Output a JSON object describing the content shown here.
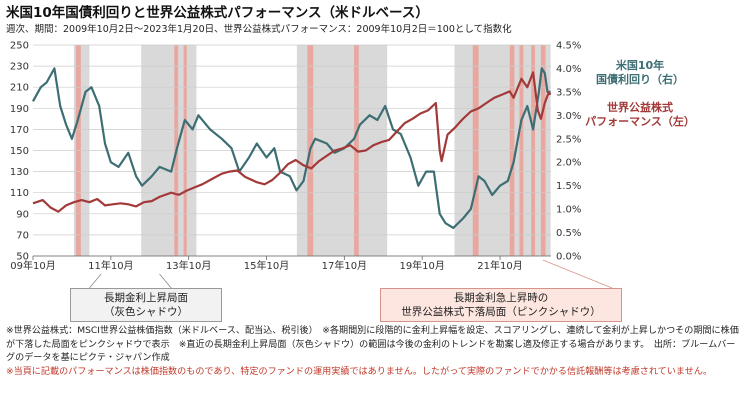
{
  "header": {
    "title": "米国10年国債利回りと世界公益株式パフォーマンス（米ドルベース）",
    "subtitle": "週次、期間：2009年10月2日～2023年1月20日、世界公益株式パフォーマンス：2009年10月2日＝100として指数化"
  },
  "chart_data": {
    "type": "line",
    "x_range": [
      "2009-10-02",
      "2023-01-20"
    ],
    "x_ticks": [
      "09年10月",
      "11年10月",
      "13年10月",
      "15年10月",
      "17年10月",
      "19年10月",
      "21年10月"
    ],
    "left_axis": {
      "min": 50,
      "max": 250,
      "step": 20,
      "ticks": [
        "50",
        "70",
        "90",
        "110",
        "130",
        "150",
        "170",
        "190",
        "210",
        "230",
        "250"
      ]
    },
    "right_axis": {
      "min": 0,
      "max": 4.5,
      "step": 0.5,
      "ticks": [
        "0.0%",
        "0.5%",
        "1.0%",
        "1.5%",
        "2.0%",
        "2.5%",
        "3.0%",
        "3.5%",
        "4.0%",
        "4.5%"
      ]
    },
    "grid": true,
    "gray_periods": [
      [
        2010.8,
        2011.2
      ],
      [
        2012.53,
        2013.95
      ],
      [
        2016.53,
        2018.85
      ],
      [
        2020.58,
        2023.05
      ]
    ],
    "pink_periods": [
      [
        2010.85,
        2010.98
      ],
      [
        2013.38,
        2013.48
      ],
      [
        2013.62,
        2013.7
      ],
      [
        2016.8,
        2016.95
      ],
      [
        2018.0,
        2018.12
      ],
      [
        2021.05,
        2021.2
      ],
      [
        2022.0,
        2022.12
      ],
      [
        2022.25,
        2022.35
      ],
      [
        2022.55,
        2022.65
      ],
      [
        2022.8,
        2022.92
      ]
    ],
    "series": [
      {
        "name": "米国10年国債利回り（右）",
        "axis": "right",
        "color": "#3d6e74",
        "label": "米国10年\n国債利回り（右）",
        "points": [
          [
            2009.75,
            3.3
          ],
          [
            2009.95,
            3.6
          ],
          [
            2010.1,
            3.7
          ],
          [
            2010.3,
            4.0
          ],
          [
            2010.45,
            3.2
          ],
          [
            2010.6,
            2.8
          ],
          [
            2010.75,
            2.5
          ],
          [
            2010.9,
            2.9
          ],
          [
            2011.1,
            3.5
          ],
          [
            2011.25,
            3.6
          ],
          [
            2011.45,
            3.2
          ],
          [
            2011.6,
            2.4
          ],
          [
            2011.75,
            2.0
          ],
          [
            2011.95,
            1.9
          ],
          [
            2012.2,
            2.2
          ],
          [
            2012.4,
            1.7
          ],
          [
            2012.55,
            1.5
          ],
          [
            2012.8,
            1.7
          ],
          [
            2013.0,
            1.9
          ],
          [
            2013.3,
            1.8
          ],
          [
            2013.45,
            2.3
          ],
          [
            2013.65,
            2.9
          ],
          [
            2013.85,
            2.7
          ],
          [
            2014.0,
            3.0
          ],
          [
            2014.3,
            2.7
          ],
          [
            2014.6,
            2.5
          ],
          [
            2014.85,
            2.3
          ],
          [
            2015.05,
            1.8
          ],
          [
            2015.3,
            2.1
          ],
          [
            2015.5,
            2.4
          ],
          [
            2015.75,
            2.1
          ],
          [
            2015.95,
            2.3
          ],
          [
            2016.1,
            1.8
          ],
          [
            2016.35,
            1.7
          ],
          [
            2016.52,
            1.4
          ],
          [
            2016.7,
            1.6
          ],
          [
            2016.88,
            2.3
          ],
          [
            2017.0,
            2.5
          ],
          [
            2017.3,
            2.4
          ],
          [
            2017.5,
            2.2
          ],
          [
            2017.75,
            2.3
          ],
          [
            2018.0,
            2.5
          ],
          [
            2018.15,
            2.8
          ],
          [
            2018.4,
            3.0
          ],
          [
            2018.6,
            2.9
          ],
          [
            2018.8,
            3.2
          ],
          [
            2019.0,
            2.7
          ],
          [
            2019.2,
            2.6
          ],
          [
            2019.45,
            2.1
          ],
          [
            2019.65,
            1.5
          ],
          [
            2019.85,
            1.8
          ],
          [
            2020.05,
            1.8
          ],
          [
            2020.2,
            0.9
          ],
          [
            2020.35,
            0.7
          ],
          [
            2020.55,
            0.6
          ],
          [
            2020.8,
            0.8
          ],
          [
            2021.0,
            1.0
          ],
          [
            2021.2,
            1.7
          ],
          [
            2021.35,
            1.6
          ],
          [
            2021.55,
            1.3
          ],
          [
            2021.75,
            1.5
          ],
          [
            2021.95,
            1.6
          ],
          [
            2022.1,
            2.0
          ],
          [
            2022.3,
            2.9
          ],
          [
            2022.45,
            3.2
          ],
          [
            2022.6,
            2.7
          ],
          [
            2022.75,
            3.5
          ],
          [
            2022.82,
            4.0
          ],
          [
            2022.9,
            3.9
          ],
          [
            2022.97,
            3.5
          ],
          [
            2023.05,
            3.5
          ]
        ]
      },
      {
        "name": "世界公益株式パフォーマンス（左）",
        "axis": "left",
        "color": "#a33a3a",
        "label": "世界公益株式\nパフォーマンス（左）",
        "points": [
          [
            2009.75,
            100
          ],
          [
            2010.0,
            103
          ],
          [
            2010.2,
            96
          ],
          [
            2010.4,
            92
          ],
          [
            2010.6,
            98
          ],
          [
            2010.8,
            101
          ],
          [
            2011.0,
            103
          ],
          [
            2011.2,
            101
          ],
          [
            2011.4,
            104
          ],
          [
            2011.6,
            98
          ],
          [
            2011.8,
            99
          ],
          [
            2012.0,
            100
          ],
          [
            2012.2,
            99
          ],
          [
            2012.4,
            97
          ],
          [
            2012.6,
            101
          ],
          [
            2012.8,
            102
          ],
          [
            2013.0,
            106
          ],
          [
            2013.3,
            110
          ],
          [
            2013.5,
            108
          ],
          [
            2013.7,
            112
          ],
          [
            2013.9,
            115
          ],
          [
            2014.1,
            118
          ],
          [
            2014.4,
            124
          ],
          [
            2014.6,
            128
          ],
          [
            2014.8,
            130
          ],
          [
            2015.0,
            131
          ],
          [
            2015.2,
            125
          ],
          [
            2015.5,
            120
          ],
          [
            2015.7,
            118
          ],
          [
            2015.9,
            122
          ],
          [
            2016.1,
            129
          ],
          [
            2016.3,
            137
          ],
          [
            2016.5,
            141
          ],
          [
            2016.7,
            136
          ],
          [
            2016.9,
            133
          ],
          [
            2017.1,
            140
          ],
          [
            2017.3,
            145
          ],
          [
            2017.5,
            150
          ],
          [
            2017.7,
            152
          ],
          [
            2017.9,
            155
          ],
          [
            2018.1,
            149
          ],
          [
            2018.3,
            150
          ],
          [
            2018.5,
            155
          ],
          [
            2018.7,
            158
          ],
          [
            2018.9,
            160
          ],
          [
            2019.1,
            168
          ],
          [
            2019.3,
            176
          ],
          [
            2019.5,
            180
          ],
          [
            2019.7,
            185
          ],
          [
            2019.9,
            188
          ],
          [
            2020.1,
            195
          ],
          [
            2020.2,
            150
          ],
          [
            2020.25,
            140
          ],
          [
            2020.4,
            165
          ],
          [
            2020.6,
            172
          ],
          [
            2020.8,
            180
          ],
          [
            2021.0,
            187
          ],
          [
            2021.2,
            190
          ],
          [
            2021.4,
            195
          ],
          [
            2021.6,
            200
          ],
          [
            2021.8,
            203
          ],
          [
            2022.0,
            206
          ],
          [
            2022.1,
            200
          ],
          [
            2022.3,
            218
          ],
          [
            2022.45,
            210
          ],
          [
            2022.6,
            224
          ],
          [
            2022.72,
            188
          ],
          [
            2022.8,
            180
          ],
          [
            2022.9,
            195
          ],
          [
            2023.0,
            205
          ],
          [
            2023.05,
            203
          ]
        ]
      }
    ]
  },
  "annotations": {
    "gray_box": "長期金利上昇局面\n（灰色シャドウ）",
    "pink_box": "長期金利急上昇時の\n世界公益株式下落局面（ピンクシャドウ）"
  },
  "notes": [
    "※世界公益株式：MSCI世界公益株価指数（米ドルベース、配当込、税引後）　※各期間別に段階的に金利上昇幅を設定、スコアリングし、連続して金利が上昇しかつその期間に株価が下落した局面をピンクシャドウで表示　※直近の長期金利上昇局面（灰色シャドウ）の範囲は今後の金利のトレンドを勘案し適及修正する場合があります。　出所：ブルームバーグのデータを基にピクテ・ジャパン作成"
  ],
  "warning": "※当頁に記載のパフォーマンスは株価指数のものであり、特定のファンドの運用実績ではありません。したがって実際のファンドでかかる信託報酬等は考慮されていません。",
  "colors": {
    "gray_shade": "#d9d9d9",
    "pink_shade": "#e8a8a0",
    "grid": "#cccccc"
  }
}
